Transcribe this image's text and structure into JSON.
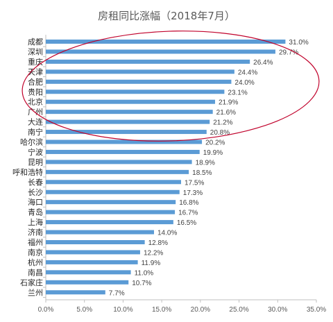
{
  "chart_data": {
    "type": "bar",
    "orientation": "horizontal",
    "title": "房租同比涨幅（2018年7月）",
    "categories": [
      "成都",
      "深圳",
      "重庆",
      "天津",
      "合肥",
      "贵阳",
      "北京",
      "广州",
      "大连",
      "南宁",
      "哈尔滨",
      "宁波",
      "昆明",
      "呼和浩特",
      "长春",
      "长沙",
      "海口",
      "青岛",
      "上海",
      "济南",
      "福州",
      "南京",
      "杭州",
      "南昌",
      "石家庄",
      "兰州"
    ],
    "values": [
      31.0,
      29.7,
      26.4,
      24.4,
      24.0,
      23.1,
      21.9,
      21.6,
      21.2,
      20.8,
      20.2,
      19.9,
      18.9,
      18.5,
      17.5,
      17.3,
      16.8,
      16.7,
      16.5,
      14.0,
      12.8,
      12.2,
      11.9,
      11.0,
      10.7,
      7.7
    ],
    "value_labels": [
      "31.0%",
      "29.7%",
      "26.4%",
      "24.4%",
      "24.0%",
      "23.1%",
      "21.9%",
      "21.6%",
      "21.2%",
      "20.8%",
      "20.2%",
      "19.9%",
      "18.9%",
      "18.5%",
      "17.5%",
      "17.3%",
      "16.8%",
      "16.7%",
      "16.5%",
      "14.0%",
      "12.8%",
      "12.2%",
      "11.9%",
      "11.0%",
      "10.7%",
      "7.7%"
    ],
    "xlim": [
      0,
      35
    ],
    "xticks": [
      "0.0%",
      "5.0%",
      "10.0%",
      "15.0%",
      "20.0%",
      "25.0%",
      "30.0%",
      "35.0%"
    ],
    "grid": false,
    "legend": "none",
    "annotation": "red ellipse highlighting the top cities",
    "colors": {
      "bar": "#5B9BD5",
      "ellipse": "#C0002A",
      "axis": "#BFBFBF"
    }
  }
}
